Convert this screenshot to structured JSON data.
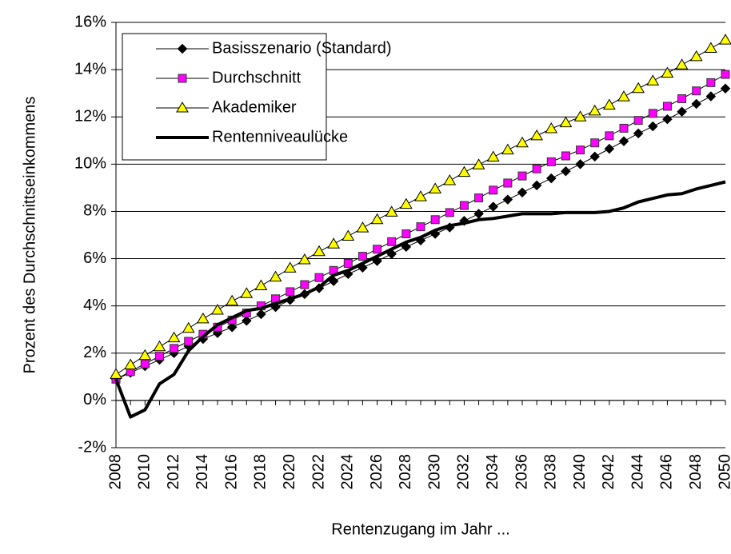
{
  "chart_data": {
    "type": "line",
    "x_label": "Rentenzugang im Jahr ...",
    "y_label": "Prozent des Durchschnittseinkommens",
    "categories": [
      "2008",
      null,
      "2010",
      null,
      "2012",
      null,
      "2014",
      null,
      "2016",
      null,
      "2018",
      null,
      "2020",
      null,
      "2022",
      null,
      "2024",
      null,
      "2026",
      null,
      "2028",
      null,
      "2030",
      null,
      "2032",
      null,
      "2034",
      null,
      "2036",
      null,
      "2038",
      null,
      "2040",
      null,
      "2042",
      null,
      "2044",
      null,
      "2046",
      null,
      "2048",
      null,
      "2050"
    ],
    "ylim": [
      -2,
      16
    ],
    "yticks": [
      {
        "value": -2,
        "label": "-2%"
      },
      {
        "value": 0,
        "label": "0%"
      },
      {
        "value": 2,
        "label": "2%"
      },
      {
        "value": 4,
        "label": "4%"
      },
      {
        "value": 6,
        "label": "6%"
      },
      {
        "value": 8,
        "label": "8%"
      },
      {
        "value": 10,
        "label": "10%"
      },
      {
        "value": 12,
        "label": "12%"
      },
      {
        "value": 14,
        "label": "14%"
      },
      {
        "value": 16,
        "label": "16%"
      }
    ],
    "grid": true,
    "legend": "upper left",
    "series": [
      {
        "name": "Basisszenario (Standard)",
        "color": "#000000",
        "marker": "diamond",
        "values": [
          0.9,
          1.17,
          1.45,
          1.72,
          2.0,
          2.3,
          2.6,
          2.85,
          3.1,
          3.37,
          3.65,
          3.95,
          4.25,
          4.5,
          4.75,
          5.05,
          5.35,
          5.62,
          5.9,
          6.2,
          6.5,
          6.77,
          7.05,
          7.32,
          7.6,
          7.9,
          8.2,
          8.5,
          8.8,
          9.1,
          9.4,
          9.7,
          10.0,
          10.32,
          10.65,
          10.97,
          11.3,
          11.6,
          11.9,
          12.22,
          12.55,
          12.87,
          13.2
        ]
      },
      {
        "name": "Durchschnitt",
        "color": "#ff00ff",
        "marker": "square",
        "values": [
          0.9,
          1.22,
          1.55,
          1.87,
          2.2,
          2.5,
          2.8,
          3.1,
          3.4,
          3.7,
          4.0,
          4.3,
          4.6,
          4.9,
          5.2,
          5.5,
          5.8,
          6.1,
          6.4,
          6.72,
          7.05,
          7.35,
          7.65,
          7.95,
          8.25,
          8.57,
          8.9,
          9.2,
          9.5,
          9.8,
          10.1,
          10.35,
          10.6,
          10.9,
          11.2,
          11.52,
          11.85,
          12.15,
          12.45,
          12.77,
          13.1,
          13.45,
          13.8
        ]
      },
      {
        "name": "Akademiker",
        "color": "#ffff00",
        "marker": "triangle",
        "values": [
          1.1,
          1.5,
          1.9,
          2.27,
          2.65,
          3.05,
          3.45,
          3.82,
          4.2,
          4.52,
          4.85,
          5.22,
          5.6,
          5.95,
          6.3,
          6.62,
          6.95,
          7.3,
          7.65,
          7.97,
          8.3,
          8.62,
          8.95,
          9.3,
          9.65,
          9.97,
          10.3,
          10.6,
          10.9,
          11.2,
          11.5,
          11.75,
          12.0,
          12.25,
          12.5,
          12.85,
          13.2,
          13.52,
          13.85,
          14.2,
          14.55,
          14.9,
          15.25
        ]
      },
      {
        "name": "Rentenniveaulücke",
        "color": "#000000",
        "marker": "none",
        "values": [
          0.9,
          -0.7,
          -0.4,
          0.7,
          1.1,
          2.1,
          2.7,
          3.2,
          3.5,
          3.8,
          3.9,
          4.1,
          4.3,
          4.5,
          4.8,
          5.3,
          5.5,
          5.8,
          6.1,
          6.4,
          6.7,
          6.9,
          7.2,
          7.4,
          7.5,
          7.65,
          7.7,
          7.8,
          7.9,
          7.9,
          7.9,
          7.95,
          7.95,
          7.95,
          8.0,
          8.15,
          8.4,
          8.55,
          8.7,
          8.75,
          8.95,
          9.1,
          9.25
        ]
      }
    ]
  }
}
